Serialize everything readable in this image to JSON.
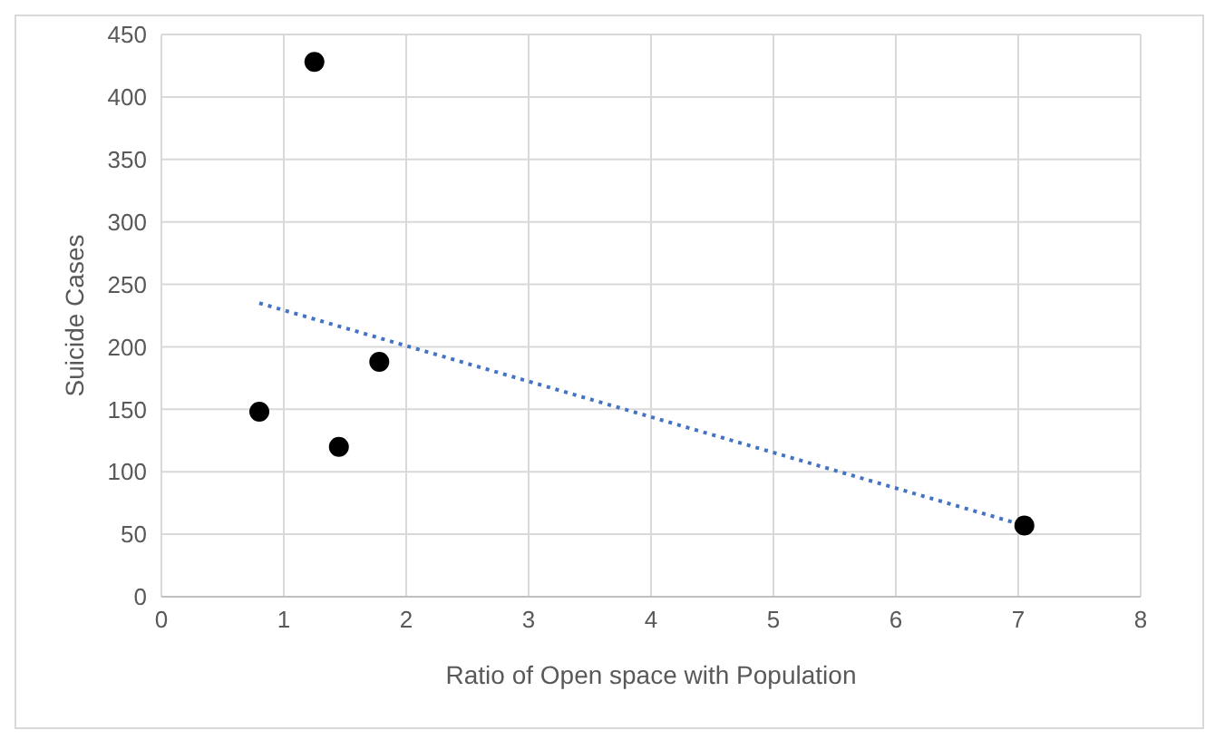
{
  "chart_data": {
    "type": "scatter",
    "xlabel": "Ratio of Open space with Population",
    "ylabel": "Suicide Cases",
    "xlim": [
      0,
      8
    ],
    "xticks": [
      0,
      1,
      2,
      3,
      4,
      5,
      6,
      7,
      8
    ],
    "ylim": [
      0,
      450
    ],
    "yticks": [
      0,
      50,
      100,
      150,
      200,
      250,
      300,
      350,
      400,
      450
    ],
    "grid": true,
    "series": [
      {
        "color": "#000000",
        "marker": "circle",
        "x": [
          0.8,
          1.25,
          1.45,
          1.78,
          7.05
        ],
        "values": [
          148,
          428,
          120,
          188,
          57
        ]
      },
      {
        "type": "line",
        "color": "#4472c4",
        "marker": "none",
        "line_style": "dotted",
        "x": [
          0.8,
          7.05
        ],
        "values": [
          235,
          57
        ]
      }
    ]
  }
}
